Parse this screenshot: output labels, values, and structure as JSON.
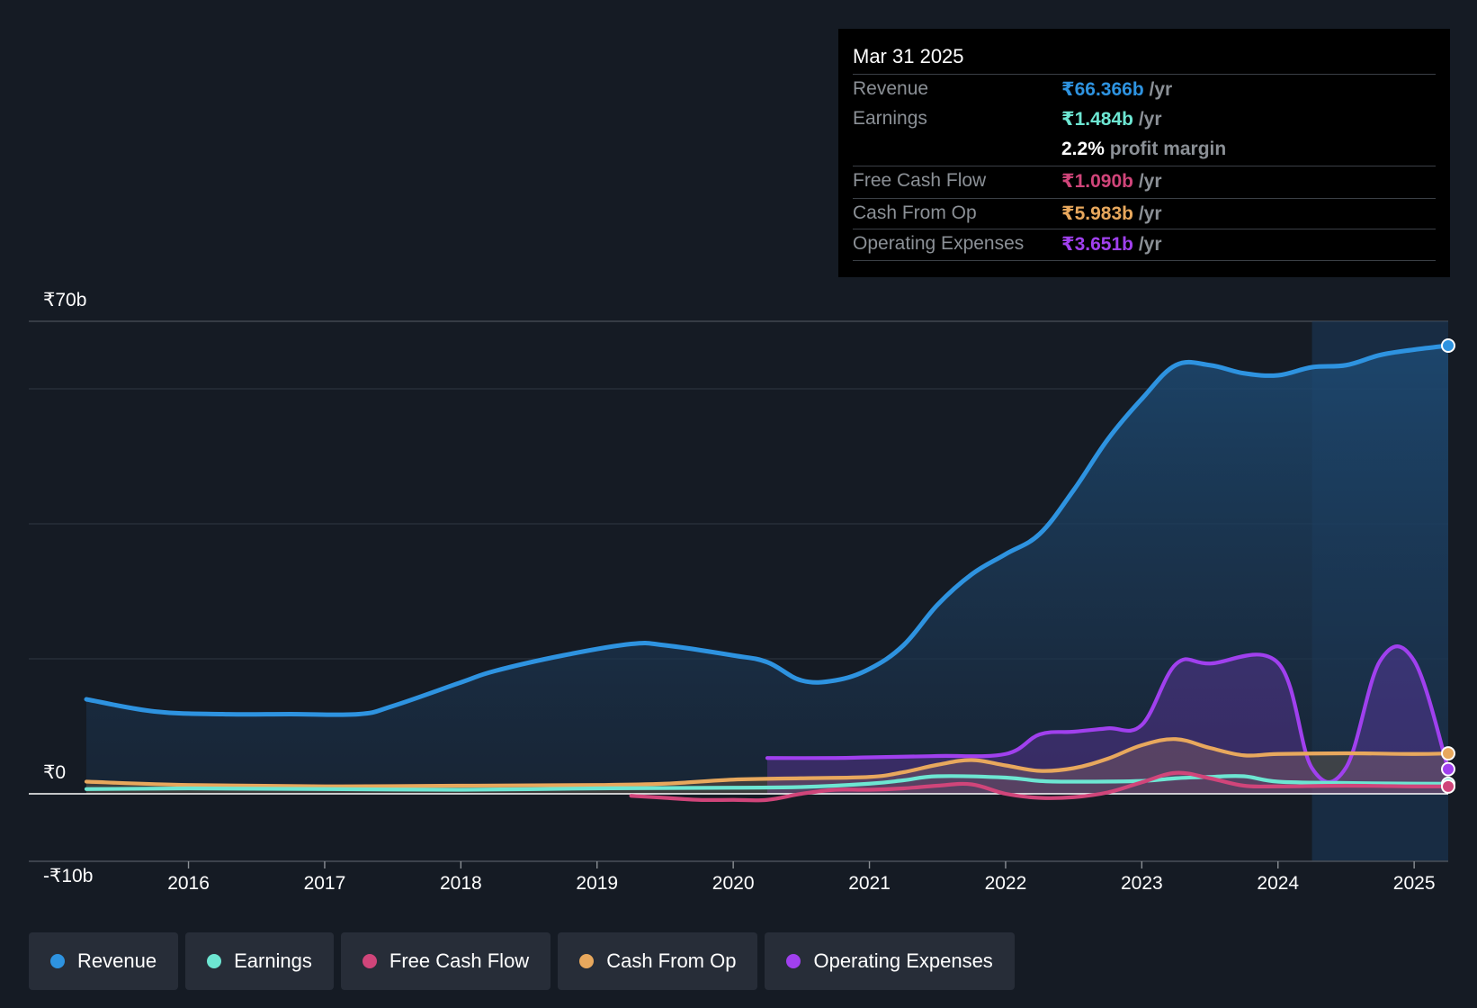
{
  "tooltip": {
    "date": "Mar 31 2025",
    "rows": [
      {
        "label": "Revenue",
        "value": "₹66.366b",
        "unit": " /yr",
        "color": "#2e93e0"
      },
      {
        "label": "Earnings",
        "value": "₹1.484b",
        "unit": " /yr",
        "color": "#6de6d2"
      },
      {
        "label": "Free Cash Flow",
        "value": "₹1.090b",
        "unit": " /yr",
        "color": "#d0457a"
      },
      {
        "label": "Cash From Op",
        "value": "₹5.983b",
        "unit": " /yr",
        "color": "#e8a85d"
      },
      {
        "label": "Operating Expenses",
        "value": "₹3.651b",
        "unit": " /yr",
        "color": "#a040ee"
      }
    ],
    "margin_value": "2.2%",
    "margin_text": " profit margin"
  },
  "legend": [
    {
      "label": "Revenue",
      "color": "#2e93e0"
    },
    {
      "label": "Earnings",
      "color": "#6de6d2"
    },
    {
      "label": "Free Cash Flow",
      "color": "#d0457a"
    },
    {
      "label": "Cash From Op",
      "color": "#e8a85d"
    },
    {
      "label": "Operating Expenses",
      "color": "#a040ee"
    }
  ],
  "chart_data": {
    "type": "area",
    "title": "",
    "xlabel": "",
    "ylabel": "",
    "y_tick_labels": [
      "₹70b",
      "₹0",
      "-₹10b"
    ],
    "ylim": [
      -10,
      70
    ],
    "xlim": [
      2015.25,
      2025.25
    ],
    "x_ticks": [
      2016,
      2017,
      2018,
      2019,
      2020,
      2021,
      2022,
      2023,
      2024,
      2025
    ],
    "x_tick_labels": [
      "2016",
      "2017",
      "2018",
      "2019",
      "2020",
      "2021",
      "2022",
      "2023",
      "2024",
      "2025"
    ],
    "forecast_start": 2024.25,
    "series": [
      {
        "name": "Revenue",
        "color": "#2e93e0",
        "fill": true,
        "x": [
          2015.25,
          2015.75,
          2016.25,
          2016.75,
          2017.25,
          2017.5,
          2018.0,
          2018.25,
          2018.75,
          2019.25,
          2019.5,
          2020.0,
          2020.25,
          2020.5,
          2020.75,
          2021.0,
          2021.25,
          2021.5,
          2021.75,
          2022.0,
          2022.25,
          2022.5,
          2022.75,
          2023.0,
          2023.25,
          2023.5,
          2023.75,
          2024.0,
          2024.25,
          2024.5,
          2024.75,
          2025.0,
          2025.25
        ],
        "values": [
          14,
          12.2,
          11.8,
          11.8,
          11.8,
          13,
          16.5,
          18.2,
          20.5,
          22.2,
          22,
          20.5,
          19.5,
          16.8,
          16.8,
          18.5,
          22,
          28,
          32.5,
          35.5,
          38.5,
          45,
          52.5,
          58.5,
          63.5,
          63.5,
          62.3,
          62,
          63.2,
          63.5,
          65,
          65.8,
          66.4
        ]
      },
      {
        "name": "Operating Expenses",
        "color": "#a040ee",
        "fill": true,
        "x": [
          2020.25,
          2020.75,
          2021.0,
          2021.5,
          2022.0,
          2022.25,
          2022.5,
          2022.75,
          2023.0,
          2023.25,
          2023.5,
          2024.0,
          2024.25,
          2024.5,
          2024.75,
          2025.0,
          2025.25
        ],
        "values": [
          5.3,
          5.3,
          5.4,
          5.6,
          5.9,
          8.8,
          9.2,
          9.7,
          10.2,
          19.2,
          19.3,
          19.4,
          3.8,
          3.9,
          19.7,
          19.7,
          3.651
        ]
      },
      {
        "name": "Cash From Op",
        "color": "#e8a85d",
        "fill": true,
        "x": [
          2015.25,
          2016.0,
          2017.0,
          2018.0,
          2019.0,
          2019.5,
          2020.0,
          2020.5,
          2021.0,
          2021.25,
          2021.5,
          2021.75,
          2022.0,
          2022.25,
          2022.5,
          2022.75,
          2023.0,
          2023.25,
          2023.5,
          2023.75,
          2024.0,
          2024.5,
          2025.0,
          2025.25
        ],
        "values": [
          1.8,
          1.3,
          1.1,
          1.2,
          1.3,
          1.5,
          2.1,
          2.3,
          2.5,
          3.2,
          4.3,
          5,
          4.2,
          3.4,
          3.8,
          5.2,
          7.2,
          8.1,
          6.8,
          5.7,
          5.9,
          6,
          5.9,
          5.983
        ]
      },
      {
        "name": "Earnings",
        "color": "#6de6d2",
        "fill": false,
        "x": [
          2015.25,
          2016.0,
          2017.0,
          2018.0,
          2019.0,
          2020.0,
          2020.5,
          2021.0,
          2021.25,
          2021.5,
          2022.0,
          2022.25,
          2022.5,
          2023.0,
          2023.25,
          2023.5,
          2023.75,
          2024.0,
          2024.5,
          2025.0,
          2025.25
        ],
        "values": [
          0.7,
          0.8,
          0.7,
          0.6,
          0.8,
          0.9,
          1,
          1.5,
          2,
          2.6,
          2.4,
          1.9,
          1.8,
          1.9,
          2.3,
          2.5,
          2.6,
          1.8,
          1.6,
          1.5,
          1.484
        ]
      },
      {
        "name": "Free Cash Flow",
        "color": "#d0457a",
        "fill": false,
        "x": [
          2019.25,
          2019.5,
          2019.75,
          2020.0,
          2020.25,
          2020.5,
          2020.75,
          2021.0,
          2021.25,
          2021.5,
          2021.75,
          2022.0,
          2022.25,
          2022.5,
          2022.75,
          2023.0,
          2023.25,
          2023.5,
          2023.75,
          2024.0,
          2024.5,
          2025.0,
          2025.25
        ],
        "values": [
          -0.3,
          -0.6,
          -0.9,
          -0.9,
          -0.9,
          0,
          0.6,
          0.6,
          0.8,
          1.2,
          1.4,
          0,
          -0.6,
          -0.5,
          0.2,
          1.7,
          3.1,
          2.3,
          1.2,
          1.1,
          1.2,
          1.1,
          1.09
        ]
      }
    ]
  }
}
